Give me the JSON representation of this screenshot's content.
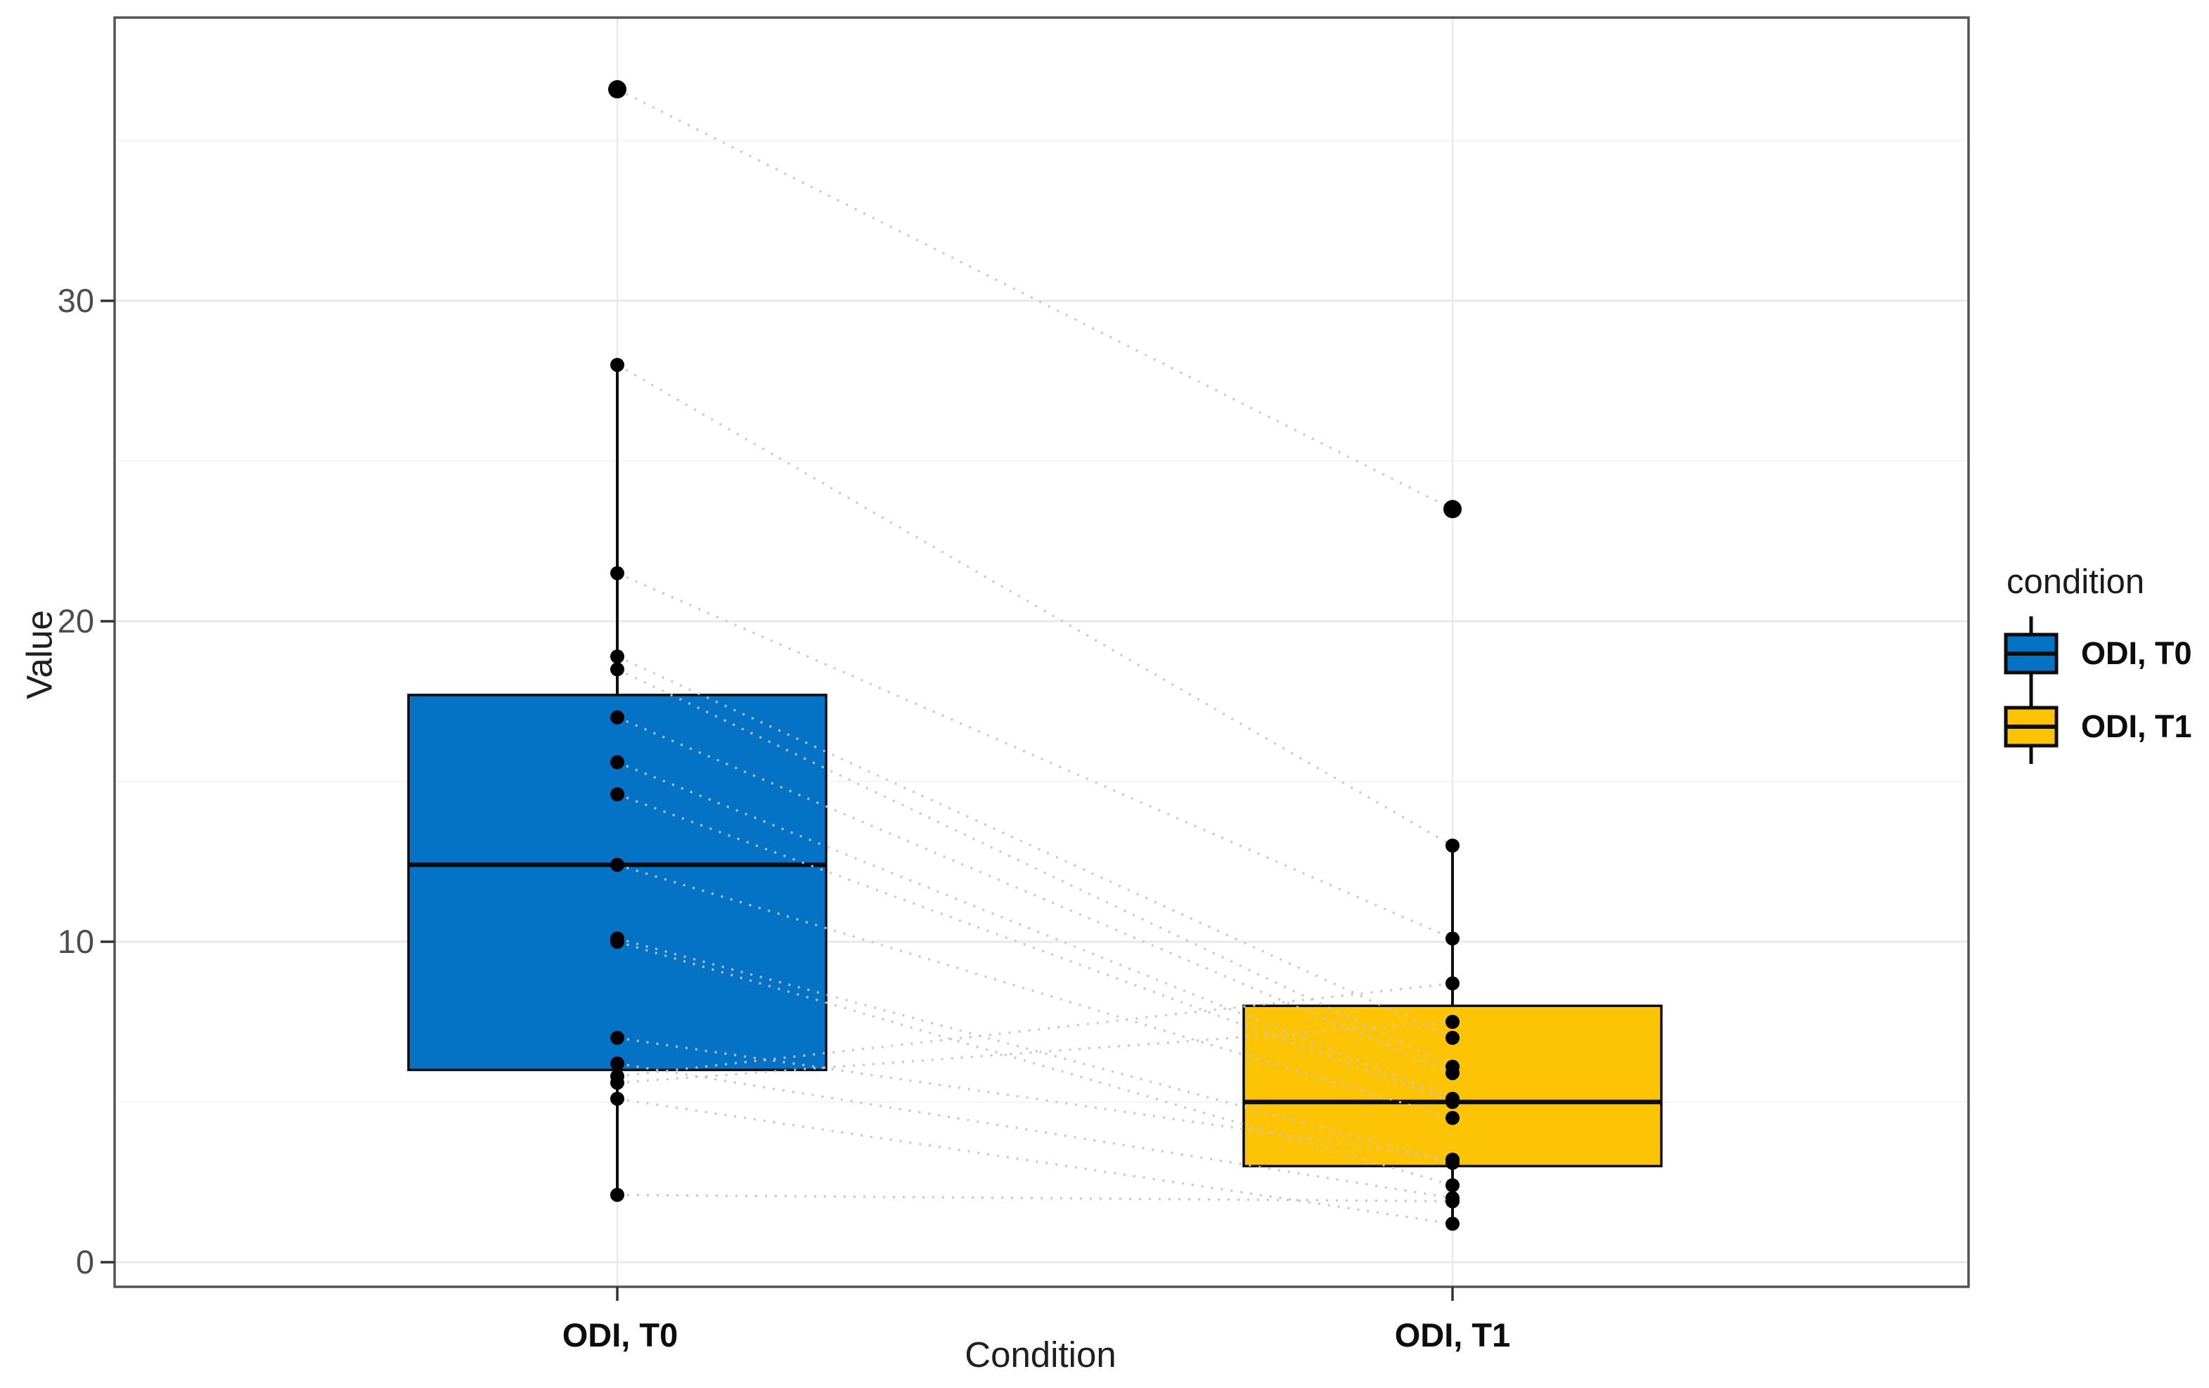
{
  "chart_data": {
    "type": "boxplot",
    "subtype": "paired-boxplot-with-points-and-connecting-lines",
    "title": "",
    "xlabel": "Condition",
    "ylabel": "Value",
    "categories": [
      "ODI, T0",
      "ODI, T1"
    ],
    "y_tick_labels": [
      "0",
      "10",
      "20",
      "30"
    ],
    "y_ticks": [
      0,
      10,
      20,
      30
    ],
    "y_minor_ticks": [
      5,
      15,
      25,
      35
    ],
    "ylim": [
      -0.8,
      38.8
    ],
    "grid": "horizontal major+minor, vertical gridline at each category",
    "legend_position": "right",
    "boxes": [
      {
        "condition": "ODI, T0",
        "color": "#0473c5",
        "whisker_low": 2.1,
        "q1": 6.0,
        "median": 12.4,
        "q3": 17.7,
        "whisker_high": 28.0,
        "outliers": [
          36.6
        ]
      },
      {
        "condition": "ODI, T1",
        "color": "#fcc404",
        "whisker_low": 1.2,
        "q1": 3.0,
        "median": 5.0,
        "q3": 8.0,
        "whisker_high": 13.0,
        "outliers": [
          23.5
        ]
      }
    ],
    "pairs": [
      [
        36.6,
        23.5
      ],
      [
        28.0,
        13.0
      ],
      [
        21.5,
        10.1
      ],
      [
        18.9,
        7.0
      ],
      [
        18.5,
        6.1
      ],
      [
        17.0,
        5.9
      ],
      [
        15.6,
        5.1
      ],
      [
        14.6,
        5.0
      ],
      [
        12.4,
        4.5
      ],
      [
        10.1,
        3.1
      ],
      [
        10.0,
        2.4
      ],
      [
        7.0,
        3.2
      ],
      [
        6.2,
        2.0
      ],
      [
        5.8,
        8.7
      ],
      [
        5.6,
        7.5
      ],
      [
        5.1,
        1.2
      ],
      [
        2.1,
        1.9
      ]
    ],
    "colors": {
      "box_t0": "#0473c5",
      "box_t1": "#fcc404",
      "box_stroke": "#0d0d0d",
      "point": "#000000",
      "pair_line": "#c6c6c6",
      "grid_major": "#e9e9e9",
      "grid_minor": "#f4f4f4",
      "panel_border": "#545454",
      "tick_mark": "#333333",
      "tick_text": "#4d4d4d"
    }
  },
  "legend": {
    "title": "condition",
    "entries": [
      {
        "label": "ODI, T0",
        "color": "#0473c5"
      },
      {
        "label": "ODI, T1",
        "color": "#fcc404"
      }
    ]
  }
}
